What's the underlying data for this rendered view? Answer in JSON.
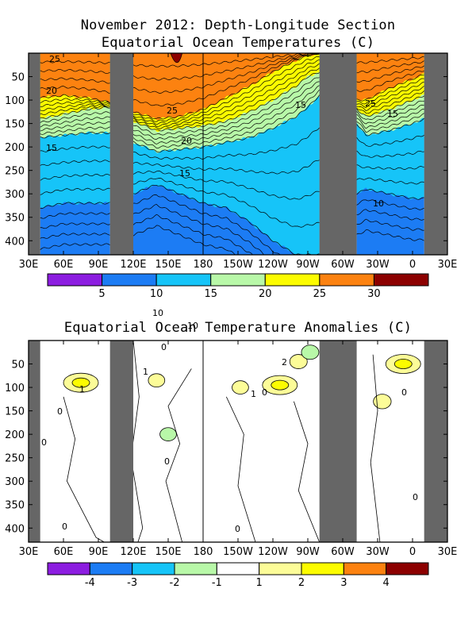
{
  "title": {
    "line1": "November 2012: Depth-Longitude Section",
    "line2": "Equatorial Ocean Temperatures (C)"
  },
  "anomaly_title": "Equatorial Ocean Temperature Anomalies (C)",
  "chart_data": [
    {
      "type": "heatmap",
      "name": "Equatorial Ocean Temperatures (C)",
      "x_ticks": [
        "30E",
        "60E",
        "90E",
        "120E",
        "150E",
        "180",
        "150W",
        "120W",
        "90W",
        "60W",
        "30W",
        "0",
        "30E"
      ],
      "x_range_deg_east": [
        30,
        390
      ],
      "y_ticks": [
        50,
        100,
        150,
        200,
        250,
        300,
        350,
        400
      ],
      "y_range_depth_m": [
        0,
        430
      ],
      "y_inverted": true,
      "land_masks_deg_east": [
        [
          30,
          40
        ],
        [
          100,
          120
        ],
        [
          280,
          312
        ],
        [
          370,
          390
        ]
      ],
      "colorbar": {
        "boundaries": [
          0,
          5,
          10,
          15,
          20,
          25,
          30,
          35
        ],
        "labels": [
          "5",
          "10",
          "15",
          "20",
          "25",
          "30"
        ],
        "colors": [
          "#8c1de0",
          "#1c7cf4",
          "#16c4f8",
          "#b8f8a8",
          "#fcfc00",
          "#fc8210",
          "#8c0000"
        ]
      },
      "contour_labels": [
        "25",
        "20",
        "15",
        "25",
        "20",
        "15",
        "10",
        "10",
        "15",
        "25",
        "15",
        "10"
      ],
      "isotherm_depths_m": {
        "lons": [
          40,
          60,
          80,
          100,
          120,
          140,
          160,
          180,
          200,
          220,
          240,
          260,
          270,
          280,
          312,
          320,
          340,
          360,
          370
        ],
        "t10": [
          330,
          320,
          320,
          320,
          300,
          280,
          300,
          320,
          330,
          360,
          400,
          430,
          430,
          430,
          300,
          290,
          300,
          310,
          310
        ],
        "t15": [
          180,
          175,
          170,
          170,
          190,
          210,
          205,
          200,
          190,
          180,
          160,
          135,
          115,
          90,
          150,
          175,
          165,
          150,
          140
        ],
        "t20": [
          140,
          130,
          120,
          115,
          145,
          165,
          160,
          155,
          145,
          125,
          100,
          70,
          50,
          40,
          120,
          135,
          120,
          100,
          90
        ],
        "t25": [
          95,
          90,
          95,
          105,
          125,
          140,
          135,
          120,
          95,
          70,
          40,
          15,
          5,
          0,
          100,
          100,
          75,
          55,
          45
        ],
        "t30": [
          0,
          0,
          0,
          0,
          0,
          0,
          20,
          0,
          0,
          0,
          0,
          0,
          0,
          0,
          0,
          0,
          0,
          0,
          0
        ]
      }
    },
    {
      "type": "heatmap",
      "name": "Equatorial Ocean Temperature Anomalies (C)",
      "x_ticks": [
        "30E",
        "60E",
        "90E",
        "120E",
        "150E",
        "180",
        "150W",
        "120W",
        "90W",
        "60W",
        "30W",
        "0",
        "30E"
      ],
      "x_range_deg_east": [
        30,
        390
      ],
      "y_ticks": [
        50,
        100,
        150,
        200,
        250,
        300,
        350,
        400
      ],
      "y_range_depth_m": [
        0,
        430
      ],
      "y_inverted": true,
      "land_masks_deg_east": [
        [
          30,
          40
        ],
        [
          100,
          120
        ],
        [
          280,
          312
        ],
        [
          370,
          390
        ]
      ],
      "colorbar": {
        "boundaries": [
          -5,
          -4,
          -3,
          -2,
          -1,
          1,
          2,
          3,
          4,
          5
        ],
        "labels": [
          "-4",
          "-3",
          "-2",
          "-1",
          "1",
          "2",
          "3",
          "4"
        ],
        "colors": [
          "#8c1de0",
          "#1c7cf4",
          "#16c4f8",
          "#b8f8a8",
          "#ffffff",
          "#fcfc98",
          "#fcfc00",
          "#fc8210",
          "#8c0000"
        ]
      },
      "anomaly_features": [
        {
          "lon": 75,
          "depth": 90,
          "value": 2.3
        },
        {
          "lon": 246,
          "depth": 95,
          "value": 2.4
        },
        {
          "lon": 262,
          "depth": 45,
          "value": 1.5
        },
        {
          "lon": 352,
          "depth": 50,
          "value": 2.2
        },
        {
          "lon": 334,
          "depth": 130,
          "value": 1.6
        },
        {
          "lon": 140,
          "depth": 85,
          "value": 1.2
        },
        {
          "lon": 212,
          "depth": 100,
          "value": 1.2
        },
        {
          "lon": 272,
          "depth": 25,
          "value": -1.5
        },
        {
          "lon": 150,
          "depth": 200,
          "value": -1.2
        }
      ],
      "contour_labels": [
        "1",
        "0",
        "0",
        "0",
        "2",
        "1",
        "0",
        "1",
        "0",
        "0",
        "0",
        "0",
        "0"
      ]
    }
  ]
}
